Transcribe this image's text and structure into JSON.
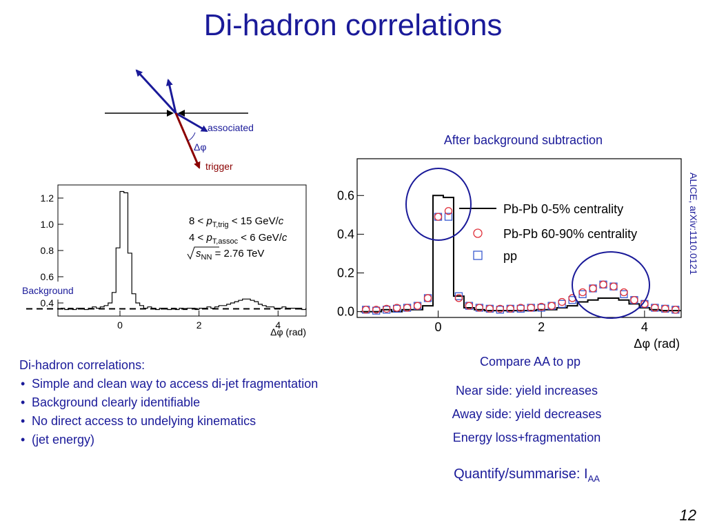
{
  "slide": {
    "title": "Di-hadron correlations",
    "page_number": "12"
  },
  "diagram": {
    "associated_label": "associated",
    "delta_phi_label": "Δφ",
    "trigger_label": "trigger"
  },
  "captions": {
    "after_subtraction": "After background subtraction",
    "compare": "Compare AA to pp",
    "near_side": "Near side: yield increases",
    "away_side": "Away side: yield decreases",
    "energy_loss": "Energy loss+fragmentation",
    "quantify_main": "Quantify/summarise: I",
    "quantify_sub": "AA",
    "reference": "ALICE, arXiv:1110.0121",
    "background_label": "Background"
  },
  "bullets": {
    "heading": "Di-hadron correlations:",
    "items": [
      "Simple and clean way to access di-jet fragmentation",
      "Background clearly identifiable",
      "No direct access to undelying kinematics",
      "(jet energy)"
    ]
  },
  "chart_data": [
    {
      "type": "line",
      "xlabel": "Δφ (rad)",
      "ylabel": "",
      "xlim": [
        -1.57,
        4.71
      ],
      "ylim": [
        0.3,
        1.3
      ],
      "x_ticks": [
        0,
        2,
        4
      ],
      "y_ticks": [
        0.4,
        0.6,
        0.8,
        1.0,
        1.2
      ],
      "x_tick_labels": [
        "0",
        "2",
        "4"
      ],
      "y_tick_labels": [
        "0.4",
        "0.6",
        "0.8",
        "1.0",
        "1.2"
      ],
      "annotations": {
        "cut1_pre": "8 <",
        "cut1_p": "p",
        "cut1_sub": "T,trig",
        "cut1_post": "< 15 GeV/",
        "cut2_pre": "4 <",
        "cut2_p": "p",
        "cut2_sub": "T,assoc",
        "cut2_post": "< 6 GeV/",
        "c": "c",
        "energy_s": "s",
        "energy_sub": "NN",
        "energy_post": "= 2.76 TeV"
      },
      "background_level": 0.355,
      "series": [
        {
          "x": [
            -1.45,
            -1.35,
            -1.25,
            -1.15,
            -1.05,
            -0.95,
            -0.85,
            -0.75,
            -0.65,
            -0.55,
            -0.45,
            -0.35,
            -0.25,
            -0.15,
            -0.05,
            0.05,
            0.15,
            0.25,
            0.35,
            0.45,
            0.55,
            0.65,
            0.75,
            0.85,
            0.95,
            1.05,
            1.15,
            1.25,
            1.35,
            1.45,
            1.55,
            1.65,
            1.75,
            1.85,
            1.95,
            2.05,
            2.15,
            2.25,
            2.35,
            2.45,
            2.55,
            2.65,
            2.75,
            2.85,
            2.95,
            3.05,
            3.15,
            3.25,
            3.35,
            3.45,
            3.55,
            3.65,
            3.75,
            3.85,
            3.95,
            4.05,
            4.15,
            4.25,
            4.35,
            4.45,
            4.55,
            4.65
          ],
          "values": [
            0.36,
            0.35,
            0.36,
            0.35,
            0.36,
            0.36,
            0.35,
            0.36,
            0.37,
            0.36,
            0.37,
            0.38,
            0.4,
            0.48,
            0.82,
            1.25,
            1.24,
            0.78,
            0.47,
            0.4,
            0.38,
            0.36,
            0.37,
            0.36,
            0.35,
            0.36,
            0.36,
            0.35,
            0.36,
            0.35,
            0.36,
            0.35,
            0.36,
            0.36,
            0.35,
            0.36,
            0.36,
            0.37,
            0.36,
            0.37,
            0.38,
            0.38,
            0.39,
            0.4,
            0.41,
            0.42,
            0.43,
            0.43,
            0.42,
            0.41,
            0.39,
            0.38,
            0.37,
            0.37,
            0.36,
            0.36,
            0.37,
            0.36,
            0.36,
            0.36,
            0.36,
            0.35
          ]
        }
      ]
    },
    {
      "type": "scatter",
      "xlabel": "Δφ (rad)",
      "ylabel": "",
      "xlim": [
        -1.57,
        4.71
      ],
      "ylim": [
        -0.03,
        0.79
      ],
      "x_ticks": [
        0,
        2,
        4
      ],
      "y_ticks": [
        0.0,
        0.2,
        0.4,
        0.6
      ],
      "x_tick_labels": [
        "0",
        "2",
        "4"
      ],
      "y_tick_labels": [
        "0.0",
        "0.2",
        "0.4",
        "0.6"
      ],
      "legend": [
        "Pb-Pb 0-5% centrality",
        "Pb-Pb 60-90% centrality",
        "pp"
      ],
      "series": [
        {
          "name": "Pb-Pb 0-5% centrality",
          "marker": "line",
          "color": "#000000",
          "x": [
            -1.4,
            -1.2,
            -1.0,
            -0.8,
            -0.6,
            -0.4,
            -0.2,
            0.0,
            0.2,
            0.4,
            0.6,
            0.8,
            1.0,
            1.2,
            1.4,
            1.6,
            1.8,
            2.0,
            2.2,
            2.4,
            2.6,
            2.8,
            3.0,
            3.2,
            3.4,
            3.6,
            3.8,
            4.0,
            4.2,
            4.4,
            4.6
          ],
          "values": [
            0.0,
            0.0,
            0.01,
            0.0,
            0.01,
            0.01,
            0.03,
            0.6,
            0.59,
            0.08,
            0.02,
            0.01,
            0.005,
            0.005,
            0.005,
            0.005,
            0.005,
            0.01,
            0.01,
            0.02,
            0.03,
            0.05,
            0.06,
            0.07,
            0.07,
            0.06,
            0.04,
            0.02,
            0.01,
            0.005,
            0.005
          ]
        },
        {
          "name": "Pb-Pb 60-90% centrality",
          "marker": "circle",
          "color": "#e0303a",
          "x": [
            -1.4,
            -1.2,
            -1.0,
            -0.8,
            -0.6,
            -0.4,
            -0.2,
            0.0,
            0.2,
            0.4,
            0.6,
            0.8,
            1.0,
            1.2,
            1.4,
            1.6,
            1.8,
            2.0,
            2.2,
            2.4,
            2.6,
            2.8,
            3.0,
            3.2,
            3.4,
            3.6,
            3.8,
            4.0,
            4.2,
            4.4,
            4.6
          ],
          "values": [
            0.01,
            0.01,
            0.015,
            0.02,
            0.02,
            0.03,
            0.07,
            0.49,
            0.52,
            0.07,
            0.03,
            0.02,
            0.015,
            0.015,
            0.015,
            0.02,
            0.02,
            0.025,
            0.03,
            0.05,
            0.07,
            0.1,
            0.12,
            0.14,
            0.13,
            0.1,
            0.06,
            0.04,
            0.02,
            0.015,
            0.01
          ]
        },
        {
          "name": "pp",
          "marker": "square",
          "color": "#3a5ad0",
          "x": [
            -1.4,
            -1.2,
            -1.0,
            -0.8,
            -0.6,
            -0.4,
            -0.2,
            0.0,
            0.2,
            0.4,
            0.6,
            0.8,
            1.0,
            1.2,
            1.4,
            1.6,
            1.8,
            2.0,
            2.2,
            2.4,
            2.6,
            2.8,
            3.0,
            3.2,
            3.4,
            3.6,
            3.8,
            4.0,
            4.2,
            4.4,
            4.6
          ],
          "values": [
            0.01,
            0.005,
            0.01,
            0.015,
            0.02,
            0.03,
            0.07,
            0.49,
            0.49,
            0.08,
            0.03,
            0.02,
            0.015,
            0.01,
            0.015,
            0.015,
            0.02,
            0.02,
            0.03,
            0.04,
            0.06,
            0.09,
            0.12,
            0.14,
            0.13,
            0.09,
            0.06,
            0.04,
            0.02,
            0.015,
            0.01
          ]
        }
      ],
      "highlights": [
        "near-side circle",
        "away-side circle"
      ]
    }
  ],
  "colors": {
    "title": "#1a1a99",
    "text": "#1a1a99",
    "trigger_arrow": "#8b0000",
    "assoc_arrow": "#1a1a99",
    "highlight_circle": "#1a1a99"
  }
}
